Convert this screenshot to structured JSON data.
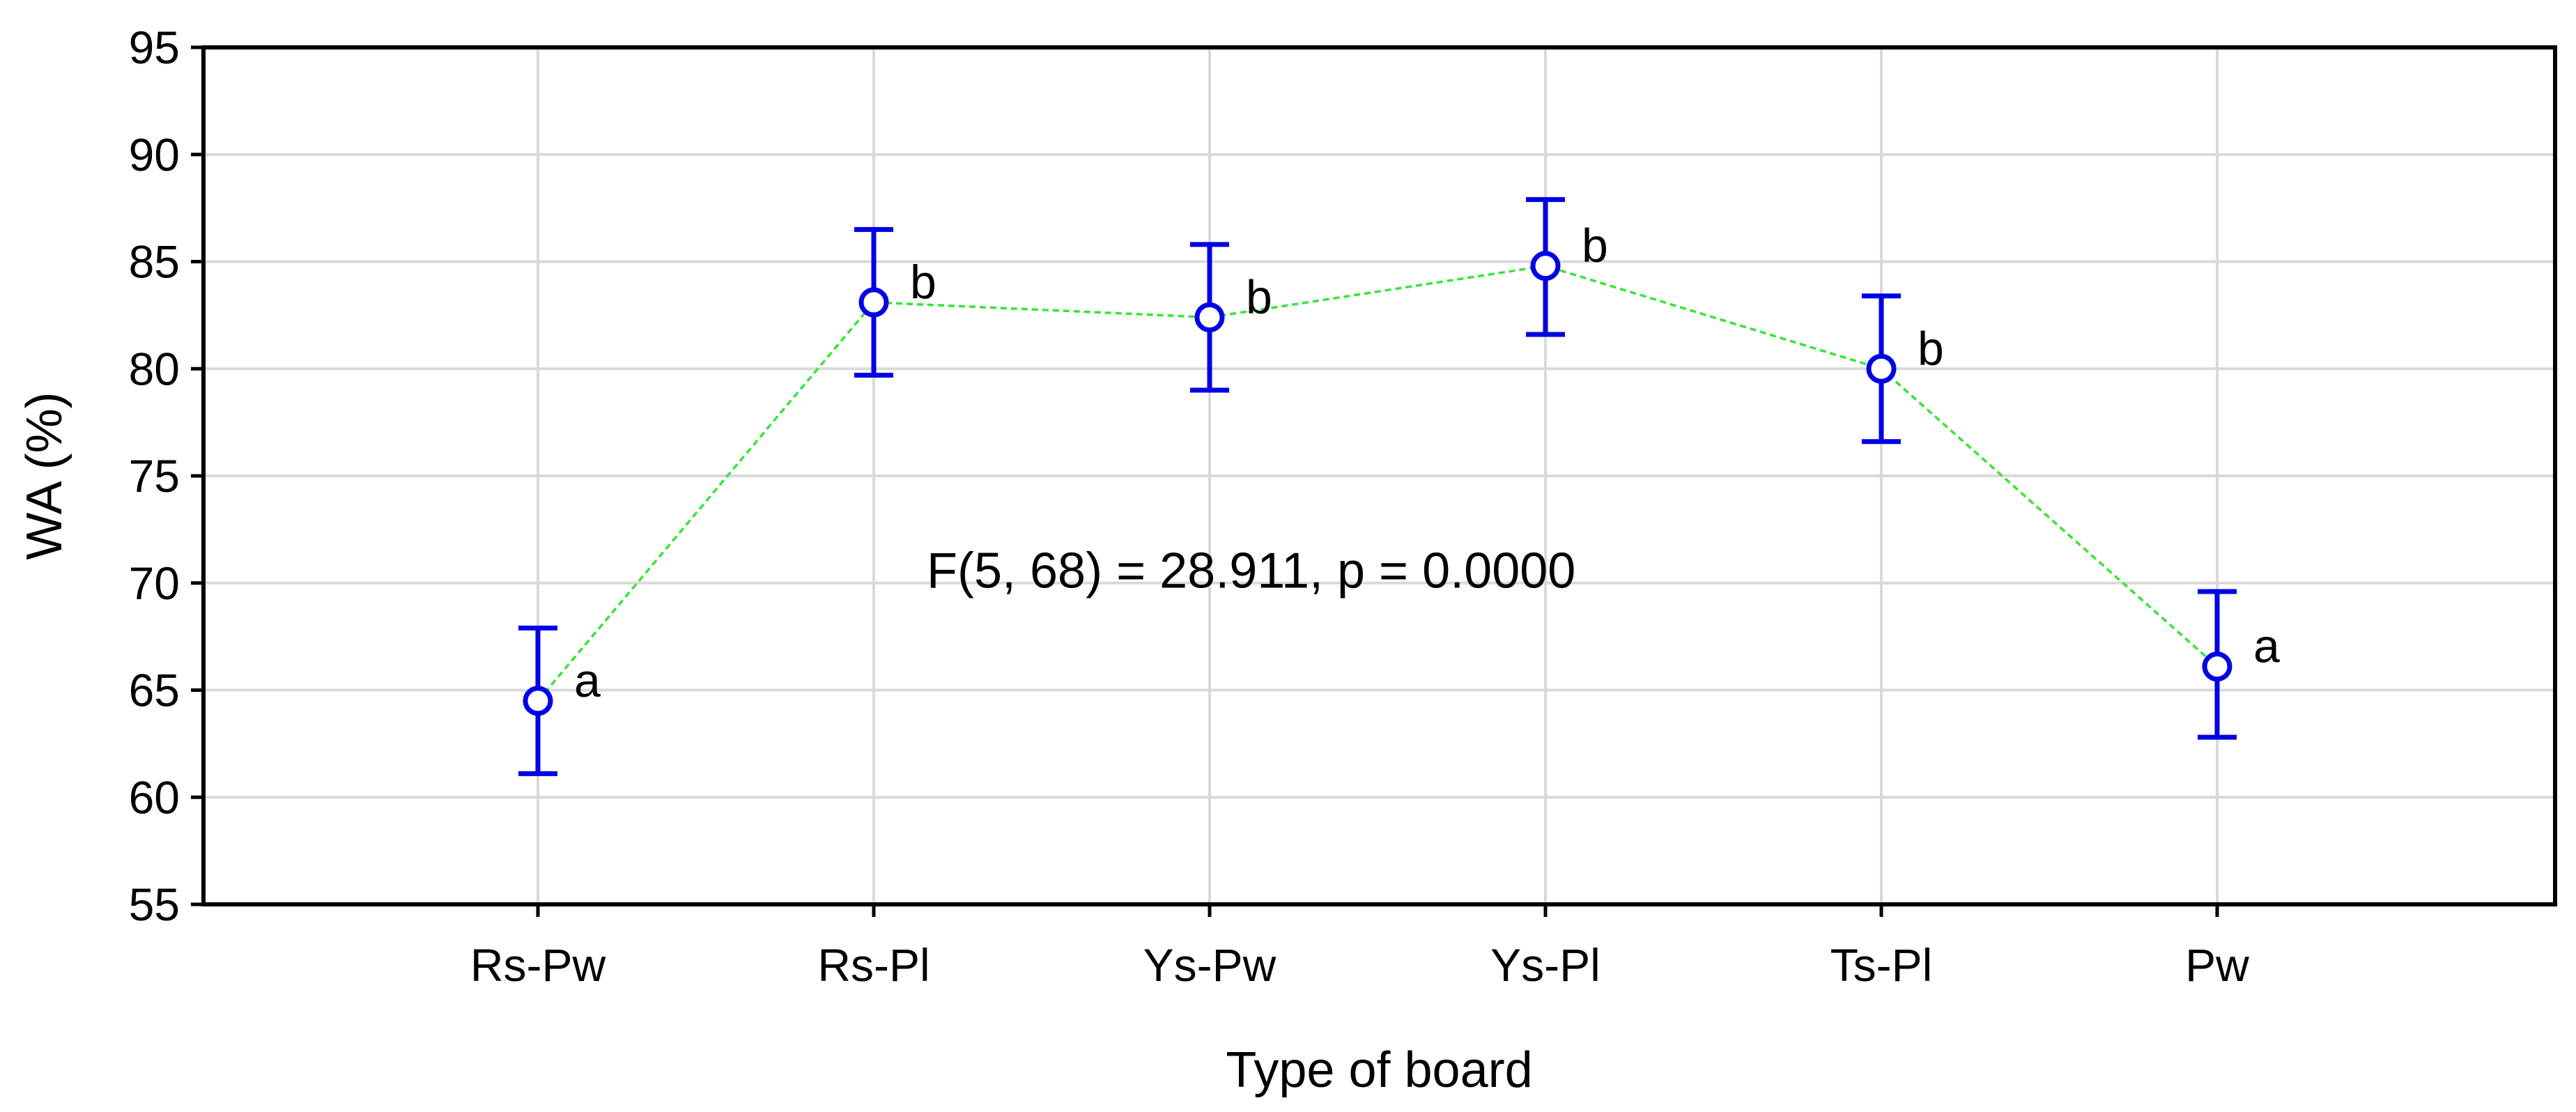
{
  "chart_data": {
    "type": "line",
    "title": "",
    "xlabel": "Type of board",
    "ylabel": "WA (%)",
    "categories": [
      "Rs-Pw",
      "Rs-Pl",
      "Ys-Pw",
      "Ys-Pl",
      "Ts-Pl",
      "Pw"
    ],
    "series": [
      {
        "values": [
          64.5,
          83.1,
          82.4,
          84.8,
          80.0,
          66.1
        ],
        "error_low": [
          61.1,
          79.7,
          79.0,
          81.6,
          76.6,
          62.8
        ],
        "error_high": [
          67.9,
          86.5,
          85.8,
          87.9,
          83.4,
          69.6
        ],
        "group_labels": [
          "a",
          "b",
          "b",
          "b",
          "b",
          "a"
        ]
      }
    ],
    "ylim": [
      55,
      95
    ],
    "yticks": [
      55,
      60,
      65,
      70,
      75,
      80,
      85,
      90,
      95
    ],
    "grid": true,
    "annotation": "F(5, 68) = 28.911, p = 0.0000",
    "colors": {
      "marker": "#0000e6",
      "line": "#33e633",
      "grid": "#d9d9d9",
      "axis": "#000000"
    }
  }
}
